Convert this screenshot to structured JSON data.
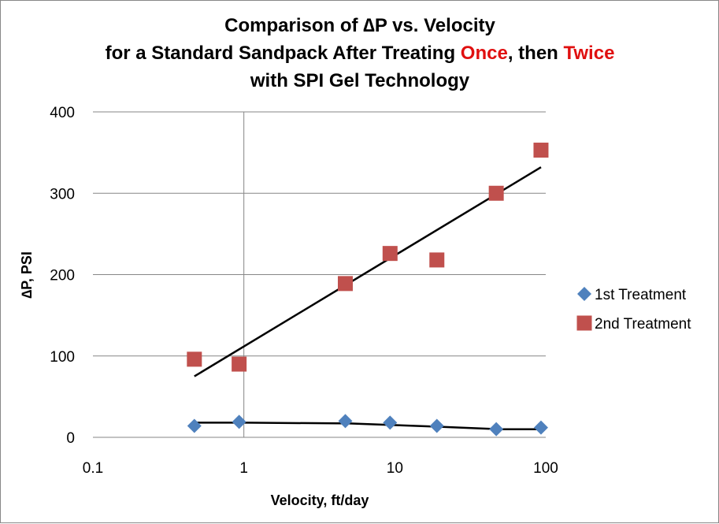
{
  "chart_data": {
    "type": "scatter",
    "title": {
      "line1": "Comparison of ∆P vs. Velocity",
      "line2_part1": "for a Standard Sandpack After Treating ",
      "line2_once": "Once",
      "line2_part2": ", then ",
      "line2_twice": "Twice",
      "line3": "with SPI Gel Technology"
    },
    "xlabel": "Velocity, ft/day",
    "ylabel": "∆P, PSI",
    "x_scale": "log",
    "xlim": [
      0.1,
      100
    ],
    "ylim": [
      0,
      400
    ],
    "x_ticks": [
      "0.1",
      "1",
      "10",
      "100"
    ],
    "y_ticks": [
      "0",
      "100",
      "200",
      "300",
      "400"
    ],
    "gridlines": "horizontal major + vertical at x=1",
    "legend_position": "right",
    "highlight_color": "#e01010",
    "series": [
      {
        "name": "1st Treatment",
        "marker": "diamond",
        "color": "#4f81bd",
        "x": [
          0.47,
          0.93,
          4.7,
          9.3,
          19,
          47,
          93
        ],
        "y": [
          14,
          19,
          20,
          18,
          14,
          10,
          12
        ],
        "trendline": {
          "x": [
            0.47,
            1,
            5,
            10,
            20,
            50,
            93
          ],
          "y": [
            18,
            18,
            17,
            15,
            13,
            10,
            10
          ]
        }
      },
      {
        "name": "2nd Treatment",
        "marker": "square",
        "color": "#c0504d",
        "x": [
          0.47,
          0.93,
          4.7,
          9.3,
          19,
          47,
          93
        ],
        "y": [
          96,
          90,
          189,
          226,
          218,
          300,
          353
        ],
        "trendline": {
          "x": [
            0.47,
            93
          ],
          "y": [
            75,
            332
          ]
        }
      }
    ]
  }
}
